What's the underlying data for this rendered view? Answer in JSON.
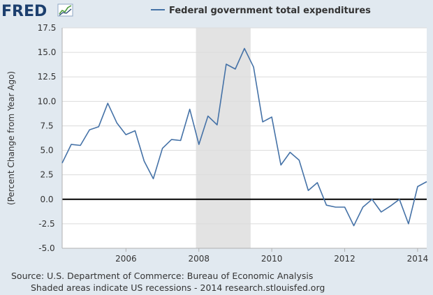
{
  "logo": {
    "text": "FRED"
  },
  "colors": {
    "background": "#e1e9f0",
    "plot_background": "#ffffff",
    "gridline": "#dcdcdc",
    "series_line": "#4572a7",
    "recession_shade": "#e3e3e3",
    "zero_line": "#000000",
    "logo": "#1c3f6e"
  },
  "footer": {
    "source": "Source: U.S. Department of Commerce: Bureau of Economic Analysis",
    "note": "Shaded areas indicate US recessions - 2014 research.stlouisfed.org"
  },
  "chart_data": {
    "type": "line",
    "title": "",
    "legend": [
      "Federal government total expenditures"
    ],
    "legend_position": "top",
    "xlabel": "",
    "ylabel": "(Percent Change from Year Ago)",
    "xlim": [
      2004.25,
      2014.25
    ],
    "ylim": [
      -5.0,
      17.5
    ],
    "x_ticks": [
      2006,
      2008,
      2010,
      2012,
      2014
    ],
    "x_tick_labels": [
      "2006",
      "2008",
      "2010",
      "2012",
      "2014"
    ],
    "y_ticks": [
      -5.0,
      -2.5,
      0.0,
      2.5,
      5.0,
      7.5,
      10.0,
      12.5,
      15.0,
      17.5
    ],
    "y_tick_labels": [
      "-5.0",
      "-2.5",
      "0.0",
      "2.5",
      "5.0",
      "7.5",
      "10.0",
      "12.5",
      "15.0",
      "17.5"
    ],
    "grid": true,
    "zero_line": true,
    "recessions": [
      [
        2007.92,
        2009.42
      ]
    ],
    "series": [
      {
        "name": "Federal government total expenditures",
        "x": [
          2004.25,
          2004.5,
          2004.75,
          2005.0,
          2005.25,
          2005.5,
          2005.75,
          2006.0,
          2006.25,
          2006.5,
          2006.75,
          2007.0,
          2007.25,
          2007.5,
          2007.75,
          2008.0,
          2008.25,
          2008.5,
          2008.75,
          2009.0,
          2009.25,
          2009.5,
          2009.75,
          2010.0,
          2010.25,
          2010.5,
          2010.75,
          2011.0,
          2011.25,
          2011.5,
          2011.75,
          2012.0,
          2012.25,
          2012.5,
          2012.75,
          2013.0,
          2013.25,
          2013.5,
          2013.75,
          2014.0,
          2014.25
        ],
        "values": [
          3.7,
          5.6,
          5.5,
          7.1,
          7.4,
          9.8,
          7.8,
          6.6,
          7.0,
          3.9,
          2.1,
          5.2,
          6.1,
          6.0,
          9.2,
          5.6,
          8.5,
          7.6,
          13.8,
          13.3,
          15.4,
          13.5,
          7.9,
          8.4,
          3.5,
          4.8,
          4.0,
          0.9,
          1.7,
          -0.6,
          -0.8,
          -0.8,
          -2.7,
          -0.8,
          0.0,
          -1.3,
          -0.7,
          0.0,
          -2.5,
          1.3,
          1.8
        ]
      }
    ]
  }
}
